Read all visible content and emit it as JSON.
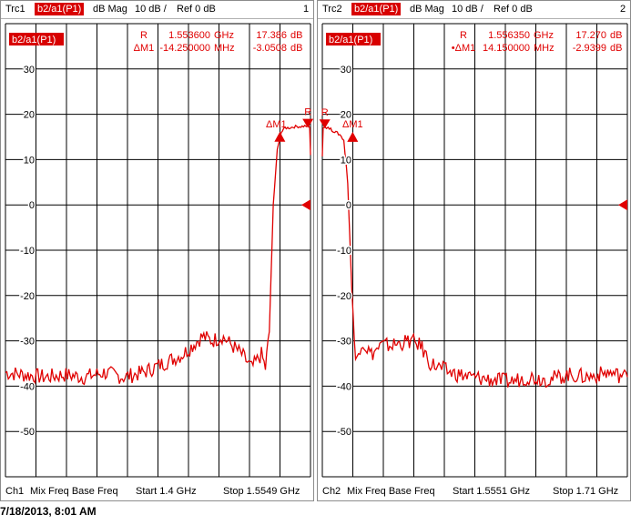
{
  "colors": {
    "trace": "#e00000",
    "grid": "#000000",
    "tag_bg": "#d80000"
  },
  "windows": [
    {
      "header": {
        "trace": "Trc1",
        "measurement": "b2/a1(P1)",
        "format": "dB Mag",
        "scale": "10 dB /",
        "ref": "Ref 0 dB",
        "window_number": "1"
      },
      "trace_label": "b2/a1(P1)",
      "markers": [
        {
          "name": "R",
          "value": "1.553600",
          "unit": "GHz",
          "level": "17.386",
          "level_unit": "dB"
        },
        {
          "name": "ΔM1",
          "value": "-14.250000",
          "unit": "MHz",
          "level": "-3.0508",
          "level_unit": "dB"
        }
      ],
      "footer": {
        "channel": "Ch1",
        "mode": "Mix Freq Base Freq",
        "start": "Start  1.4 GHz",
        "stop": "Stop  1.5549 GHz"
      },
      "plot_markers": {
        "ref": "R",
        "delta": "ΔM1"
      }
    },
    {
      "header": {
        "trace": "Trc2",
        "measurement": "b2/a1(P1)",
        "format": "dB Mag",
        "scale": "10 dB /",
        "ref": "Ref 0 dB",
        "window_number": "2"
      },
      "trace_label": "b2/a1(P1)",
      "markers": [
        {
          "name": "R",
          "value": "1.556350",
          "unit": "GHz",
          "level": "17.270",
          "level_unit": "dB"
        },
        {
          "name": "•ΔM1",
          "value": "14.150000",
          "unit": "MHz",
          "level": "-2.9399",
          "level_unit": "dB"
        }
      ],
      "footer": {
        "channel": "Ch2",
        "mode": "Mix Freq Base Freq",
        "start": "Start  1.5551 GHz",
        "stop": "Stop  1.71 GHz"
      },
      "plot_markers": {
        "ref": "R",
        "delta": "ΔM1"
      }
    }
  ],
  "timestamp": "7/18/2013, 8:01 AM",
  "chart_data": [
    {
      "type": "line",
      "title": "",
      "xlabel": "",
      "ylabel": "",
      "xlim_ghz": [
        1.4,
        1.5549
      ],
      "ylim": [
        -60,
        40
      ],
      "yticks": [
        30,
        20,
        10,
        0,
        -10,
        -20,
        -30,
        -40,
        -50
      ],
      "grid": true,
      "reference_level_db": 0,
      "series": [
        {
          "x_ghz": [
            1.4,
            1.41,
            1.42,
            1.43,
            1.44,
            1.45,
            1.46,
            1.47,
            1.48,
            1.49,
            1.5,
            1.505,
            1.51,
            1.515,
            1.52,
            1.525,
            1.53,
            1.532,
            1.534,
            1.536,
            1.538,
            1.54,
            1.542,
            1.544,
            1.546,
            1.548,
            1.55,
            1.552,
            1.5536,
            1.5545,
            1.5549
          ],
          "y_db": [
            -37,
            -37.5,
            -38,
            -37.5,
            -38,
            -37,
            -38,
            -37,
            -35,
            -33,
            -29,
            -30,
            -29,
            -31,
            -33,
            -36,
            -33,
            -36,
            -28,
            0,
            12,
            16,
            17,
            17,
            17.2,
            17.3,
            17.3,
            17.4,
            17.4,
            17,
            11
          ]
        }
      ],
      "markers": [
        {
          "name": "R",
          "x_ghz": 1.5536,
          "y_db": 17.386
        },
        {
          "name": "ΔM1",
          "x_ghz": 1.53935,
          "y_db": 14.335
        }
      ]
    },
    {
      "type": "line",
      "title": "",
      "xlabel": "",
      "ylabel": "",
      "xlim_ghz": [
        1.5551,
        1.71
      ],
      "ylim": [
        -60,
        40
      ],
      "yticks": [
        30,
        20,
        10,
        0,
        -10,
        -20,
        -30,
        -40,
        -50
      ],
      "grid": true,
      "reference_level_db": 0,
      "series": [
        {
          "x_ghz": [
            1.5551,
            1.5555,
            1.55635,
            1.558,
            1.56,
            1.562,
            1.564,
            1.566,
            1.568,
            1.57,
            1.572,
            1.575,
            1.58,
            1.585,
            1.59,
            1.6,
            1.605,
            1.61,
            1.62,
            1.63,
            1.64,
            1.65,
            1.66,
            1.67,
            1.68,
            1.69,
            1.7,
            1.71
          ],
          "y_db": [
            11,
            17,
            17.27,
            17,
            16.5,
            16,
            15.5,
            14.3,
            5,
            -18,
            -35,
            -30,
            -33,
            -31,
            -31,
            -30,
            -31,
            -35,
            -37,
            -38,
            -38.5,
            -39,
            -38,
            -38.5,
            -37.5,
            -38,
            -37,
            -38
          ]
        }
      ],
      "markers": [
        {
          "name": "R",
          "x_ghz": 1.55635,
          "y_db": 17.27
        },
        {
          "name": "ΔM1",
          "x_ghz": 1.5705,
          "y_db": 14.33
        }
      ]
    }
  ]
}
